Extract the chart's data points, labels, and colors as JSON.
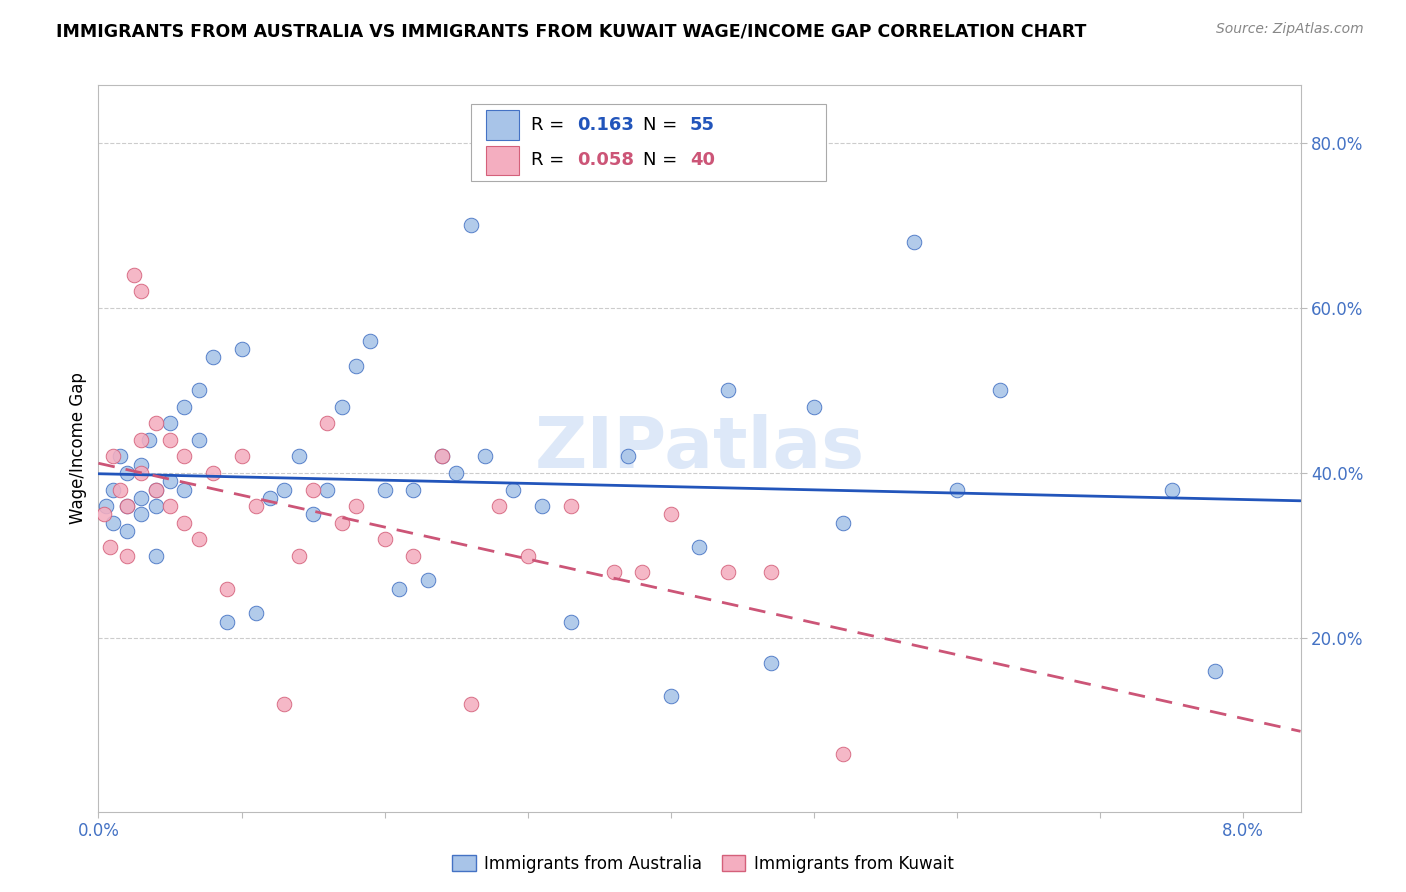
{
  "title": "IMMIGRANTS FROM AUSTRALIA VS IMMIGRANTS FROM KUWAIT WAGE/INCOME GAP CORRELATION CHART",
  "source": "Source: ZipAtlas.com",
  "ylabel": "Wage/Income Gap",
  "watermark": "ZIPatlas",
  "R_australia": 0.163,
  "N_australia": 55,
  "R_kuwait": 0.058,
  "N_kuwait": 40,
  "color_australia_fill": "#a8c4e8",
  "color_australia_edge": "#4472c4",
  "color_kuwait_fill": "#f4aec0",
  "color_kuwait_edge": "#d4607a",
  "color_trend_australia": "#2255bb",
  "color_trend_kuwait": "#cc5577",
  "xlim": [
    0.0,
    0.084
  ],
  "ylim": [
    -0.01,
    0.87
  ],
  "ytick_values": [
    0.2,
    0.4,
    0.6,
    0.8
  ],
  "ytick_labels": [
    "20.0%",
    "40.0%",
    "60.0%",
    "80.0%"
  ],
  "xtick_values": [
    0.0,
    0.01,
    0.02,
    0.03,
    0.04,
    0.05,
    0.06,
    0.07,
    0.08
  ],
  "australia_x": [
    0.0005,
    0.001,
    0.001,
    0.0015,
    0.002,
    0.002,
    0.002,
    0.003,
    0.003,
    0.003,
    0.0035,
    0.004,
    0.004,
    0.004,
    0.005,
    0.005,
    0.006,
    0.006,
    0.007,
    0.007,
    0.008,
    0.009,
    0.01,
    0.011,
    0.012,
    0.013,
    0.014,
    0.015,
    0.016,
    0.017,
    0.018,
    0.019,
    0.02,
    0.021,
    0.022,
    0.023,
    0.024,
    0.025,
    0.026,
    0.027,
    0.029,
    0.031,
    0.033,
    0.037,
    0.04,
    0.042,
    0.044,
    0.047,
    0.05,
    0.052,
    0.057,
    0.06,
    0.063,
    0.075,
    0.078
  ],
  "australia_y": [
    0.36,
    0.38,
    0.34,
    0.42,
    0.36,
    0.4,
    0.33,
    0.37,
    0.41,
    0.35,
    0.44,
    0.38,
    0.36,
    0.3,
    0.39,
    0.46,
    0.48,
    0.38,
    0.44,
    0.5,
    0.54,
    0.22,
    0.55,
    0.23,
    0.37,
    0.38,
    0.42,
    0.35,
    0.38,
    0.48,
    0.53,
    0.56,
    0.38,
    0.26,
    0.38,
    0.27,
    0.42,
    0.4,
    0.7,
    0.42,
    0.38,
    0.36,
    0.22,
    0.42,
    0.13,
    0.31,
    0.5,
    0.17,
    0.48,
    0.34,
    0.68,
    0.38,
    0.5,
    0.38,
    0.16
  ],
  "kuwait_x": [
    0.0004,
    0.0008,
    0.001,
    0.0015,
    0.002,
    0.002,
    0.0025,
    0.003,
    0.003,
    0.003,
    0.004,
    0.004,
    0.005,
    0.005,
    0.006,
    0.006,
    0.007,
    0.008,
    0.009,
    0.01,
    0.011,
    0.013,
    0.014,
    0.015,
    0.016,
    0.017,
    0.018,
    0.02,
    0.022,
    0.024,
    0.026,
    0.028,
    0.03,
    0.033,
    0.036,
    0.038,
    0.04,
    0.044,
    0.047,
    0.052
  ],
  "kuwait_y": [
    0.35,
    0.31,
    0.42,
    0.38,
    0.36,
    0.3,
    0.64,
    0.62,
    0.44,
    0.4,
    0.46,
    0.38,
    0.44,
    0.36,
    0.42,
    0.34,
    0.32,
    0.4,
    0.26,
    0.42,
    0.36,
    0.12,
    0.3,
    0.38,
    0.46,
    0.34,
    0.36,
    0.32,
    0.3,
    0.42,
    0.12,
    0.36,
    0.3,
    0.36,
    0.28,
    0.28,
    0.35,
    0.28,
    0.28,
    0.06
  ]
}
